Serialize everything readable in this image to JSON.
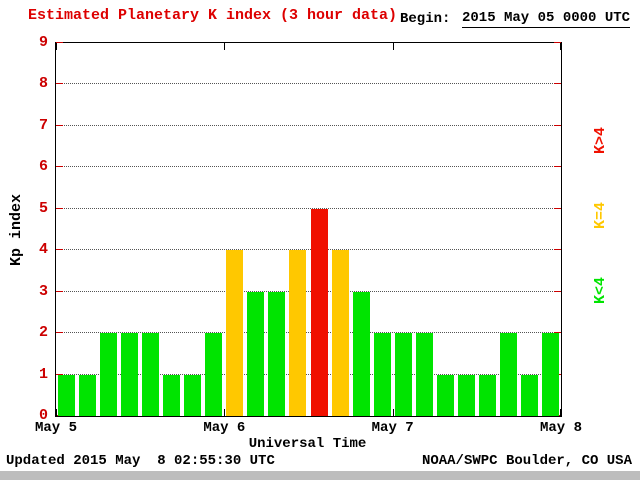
{
  "title": "Estimated Planetary K index (3 hour data)",
  "begin_label": "Begin:",
  "begin_value": "2015 May 05 0000 UTC",
  "footer": {
    "updated": "Updated 2015 May  8 02:55:30 UTC",
    "source": "NOAA/SWPC Boulder, CO USA"
  },
  "colors": {
    "title": "#dd0000",
    "bar_low": "#00e400",
    "bar_mid": "#ffc800",
    "bar_high": "#f01000",
    "y_axis": "#cc0000"
  },
  "chart_data": {
    "type": "bar",
    "title": "Estimated Planetary K index (3 hour data)",
    "xlabel": "Universal Time",
    "ylabel": "Kp index",
    "ylim": [
      0,
      9
    ],
    "yticks": [
      0,
      1,
      2,
      3,
      4,
      5,
      6,
      7,
      8,
      9
    ],
    "xticks": [
      "May 5",
      "May 6",
      "May 7",
      "May 8"
    ],
    "grid": "horizontal dotted lines at integer Kp values 1-8",
    "bars_per_day": 8,
    "interval_hours": 3,
    "values": [
      1,
      1,
      2,
      2,
      2,
      1,
      1,
      2,
      4,
      3,
      3,
      4,
      5,
      4,
      3,
      2,
      2,
      2,
      1,
      1,
      1,
      2,
      1,
      2
    ],
    "color_rule": "green if Kp<4, yellow if Kp=4, red if Kp>4",
    "legend": [
      {
        "label": "K<4",
        "color": "#00e400"
      },
      {
        "label": "K=4",
        "color": "#ffc800"
      },
      {
        "label": "K>4",
        "color": "#f01000"
      }
    ],
    "legend_position": "right side, rotated vertical, red on top"
  }
}
